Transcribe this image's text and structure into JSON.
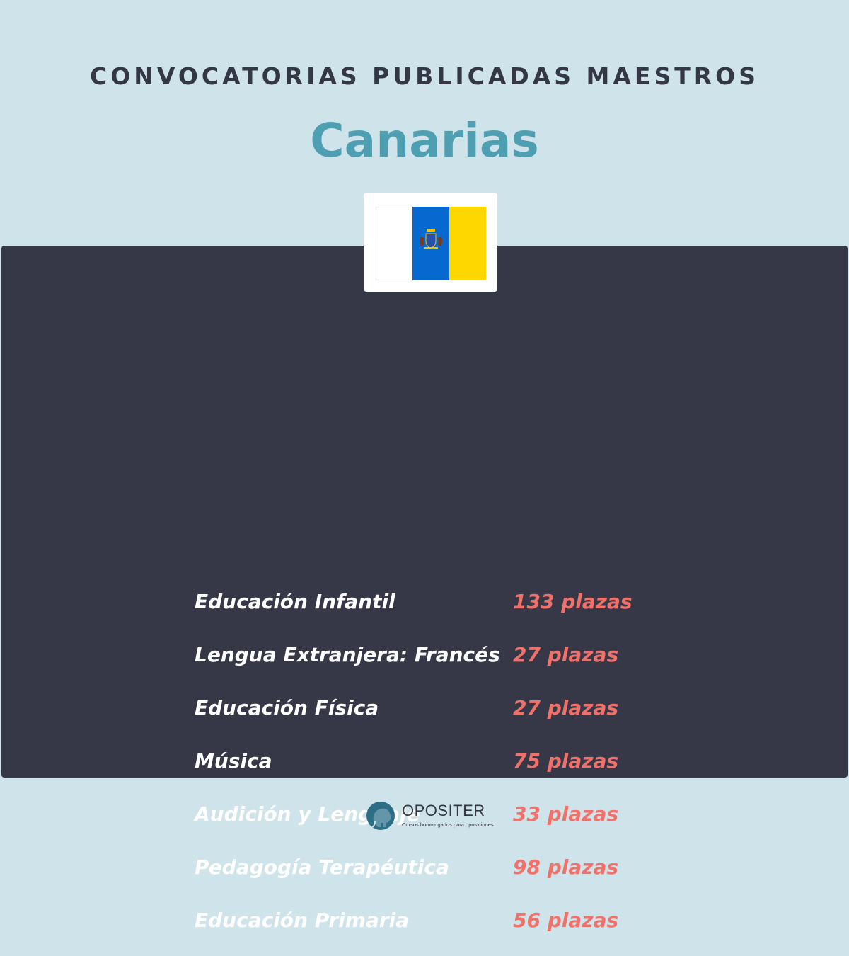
{
  "header": {
    "title": "CONVOCATORIAS  PUBLICADAS MAESTROS",
    "region": "Canarias"
  },
  "flag": {
    "icon": "canary-islands-flag-icon",
    "colors": {
      "left": "#ffffff",
      "center": "#0768cf",
      "right": "#fed700"
    }
  },
  "places": [
    {
      "subject": "Educación Infantil",
      "places": "133 plazas"
    },
    {
      "subject": "Lengua Extranjera: Francés",
      "places": "27 plazas"
    },
    {
      "subject": "Educación Física",
      "places": "27 plazas"
    },
    {
      "subject": "Música",
      "places": "75 plazas"
    },
    {
      "subject": "Audición y Lenguaje",
      "places": "33 plazas"
    },
    {
      "subject": "Pedagogía Terapéutica",
      "places": "98 plazas"
    },
    {
      "subject": "Educación Primaria",
      "places": "56 plazas"
    }
  ],
  "footer": {
    "brand": "OPOSITER",
    "tagline": "Cursos homologados para oposiciones",
    "icon": "elephant-logo-icon"
  },
  "colors": {
    "background": "#cfe3ea",
    "panel": "#363848",
    "accent": "#4f9fb2",
    "highlight": "#f0716a"
  }
}
